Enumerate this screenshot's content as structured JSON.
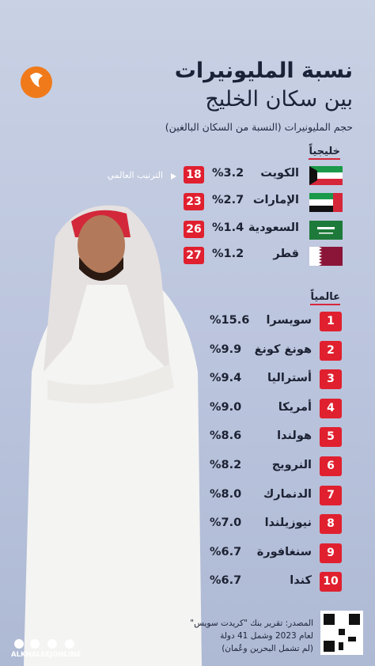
{
  "header": {
    "title_line1": "نسبة المليونيرات",
    "title_line2": "بين سكان الخليج",
    "subtitle": "حجم المليونيرات (النسبة من السكان البالغين)"
  },
  "gulf": {
    "heading": "خليجياً",
    "rank_label": "الترتيب العالمي",
    "rows": [
      {
        "country": "الكويت",
        "share": "%3.2",
        "rank": "18"
      },
      {
        "country": "الإمارات",
        "share": "%2.7",
        "rank": "23"
      },
      {
        "country": "السعودية",
        "share": "%1.4",
        "rank": "26"
      },
      {
        "country": "قطر",
        "share": "%1.2",
        "rank": "27"
      }
    ]
  },
  "world": {
    "heading": "عالمياً",
    "rows": [
      {
        "rank": "1",
        "country": "سويسرا",
        "share": "%15.6"
      },
      {
        "rank": "2",
        "country": "هونغ كونغ",
        "share": "%9.9"
      },
      {
        "rank": "3",
        "country": "أستراليا",
        "share": "%9.4"
      },
      {
        "rank": "4",
        "country": "أمريكا",
        "share": "%9.0"
      },
      {
        "rank": "5",
        "country": "هولندا",
        "share": "%8.6"
      },
      {
        "rank": "6",
        "country": "النرويج",
        "share": "%8.2"
      },
      {
        "rank": "7",
        "country": "الدنمارك",
        "share": "%8.0"
      },
      {
        "rank": "8",
        "country": "نيوزيلندا",
        "share": "%7.0"
      },
      {
        "rank": "9",
        "country": "سنغافورة",
        "share": "%6.7"
      },
      {
        "rank": "10",
        "country": "كندا",
        "share": "%6.7"
      }
    ]
  },
  "source": {
    "line1": "المصدر: تقرير بنك \"كريدت سويس\"",
    "line2": "لعام 2023 وشمل 41 دولة",
    "line3": "(لم تشمل البحرين وعُمان)"
  },
  "footer": {
    "brand": "ALKHALEEJONLINE"
  }
}
